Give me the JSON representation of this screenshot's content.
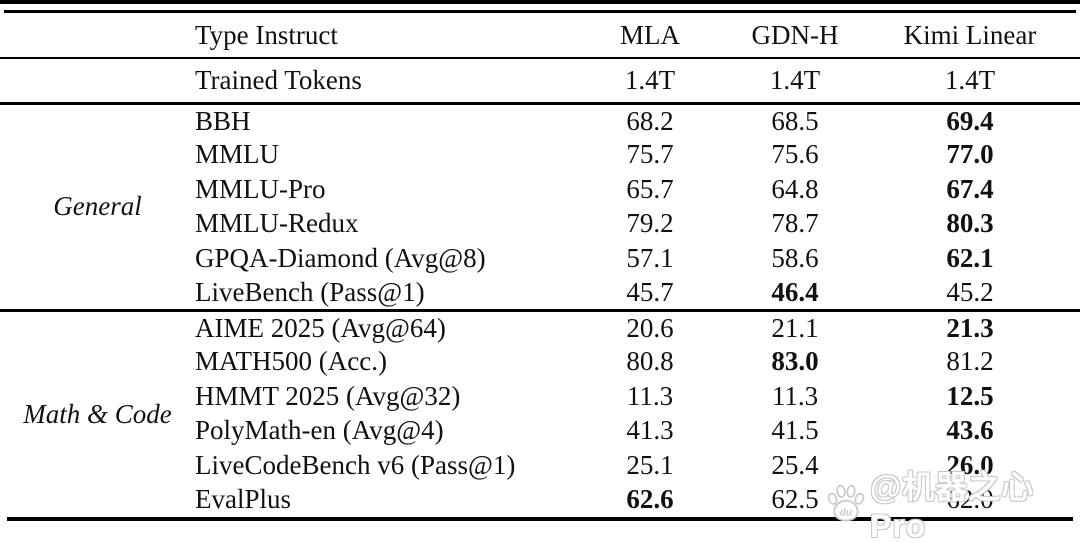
{
  "table": {
    "header": {
      "type_label": "Type Instruct",
      "columns": [
        "MLA",
        "GDN-H",
        "Kimi Linear"
      ]
    },
    "trained_tokens": {
      "label": "Trained Tokens",
      "values": [
        "1.4T",
        "1.4T",
        "1.4T"
      ]
    },
    "sections": [
      {
        "group": "General",
        "rows": [
          {
            "benchmark": "BBH",
            "values": [
              "68.2",
              "68.5",
              "69.4"
            ],
            "bold": [
              false,
              false,
              true
            ]
          },
          {
            "benchmark": "MMLU",
            "values": [
              "75.7",
              "75.6",
              "77.0"
            ],
            "bold": [
              false,
              false,
              true
            ]
          },
          {
            "benchmark": "MMLU-Pro",
            "values": [
              "65.7",
              "64.8",
              "67.4"
            ],
            "bold": [
              false,
              false,
              true
            ]
          },
          {
            "benchmark": "MMLU-Redux",
            "values": [
              "79.2",
              "78.7",
              "80.3"
            ],
            "bold": [
              false,
              false,
              true
            ]
          },
          {
            "benchmark": "GPQA-Diamond (Avg@8)",
            "values": [
              "57.1",
              "58.6",
              "62.1"
            ],
            "bold": [
              false,
              false,
              true
            ]
          },
          {
            "benchmark": "LiveBench (Pass@1)",
            "values": [
              "45.7",
              "46.4",
              "45.2"
            ],
            "bold": [
              false,
              true,
              false
            ]
          }
        ]
      },
      {
        "group": "Math & Code",
        "rows": [
          {
            "benchmark": "AIME 2025 (Avg@64)",
            "values": [
              "20.6",
              "21.1",
              "21.3"
            ],
            "bold": [
              false,
              false,
              true
            ]
          },
          {
            "benchmark": "MATH500 (Acc.)",
            "values": [
              "80.8",
              "83.0",
              "81.2"
            ],
            "bold": [
              false,
              true,
              false
            ]
          },
          {
            "benchmark": "HMMT 2025 (Avg@32)",
            "values": [
              "11.3",
              "11.3",
              "12.5"
            ],
            "bold": [
              false,
              false,
              true
            ]
          },
          {
            "benchmark": "PolyMath-en (Avg@4)",
            "values": [
              "41.3",
              "41.5",
              "43.6"
            ],
            "bold": [
              false,
              false,
              true
            ]
          },
          {
            "benchmark": "LiveCodeBench v6 (Pass@1)",
            "values": [
              "25.1",
              "25.4",
              "26.0"
            ],
            "bold": [
              false,
              false,
              true
            ]
          },
          {
            "benchmark": "EvalPlus",
            "values": [
              "62.6",
              "62.5",
              "62.0"
            ],
            "bold": [
              true,
              false,
              false
            ]
          }
        ]
      }
    ],
    "column_keys": [
      "mla",
      "gdn-h",
      "kimi-linear"
    ]
  },
  "watermark": {
    "text": "@机器之心Pro",
    "paw_label": "du"
  },
  "colors": {
    "text": "#111111",
    "rule": "#000000",
    "watermark_fill": "#ffffff",
    "watermark_outline": "#c9c9c9"
  }
}
